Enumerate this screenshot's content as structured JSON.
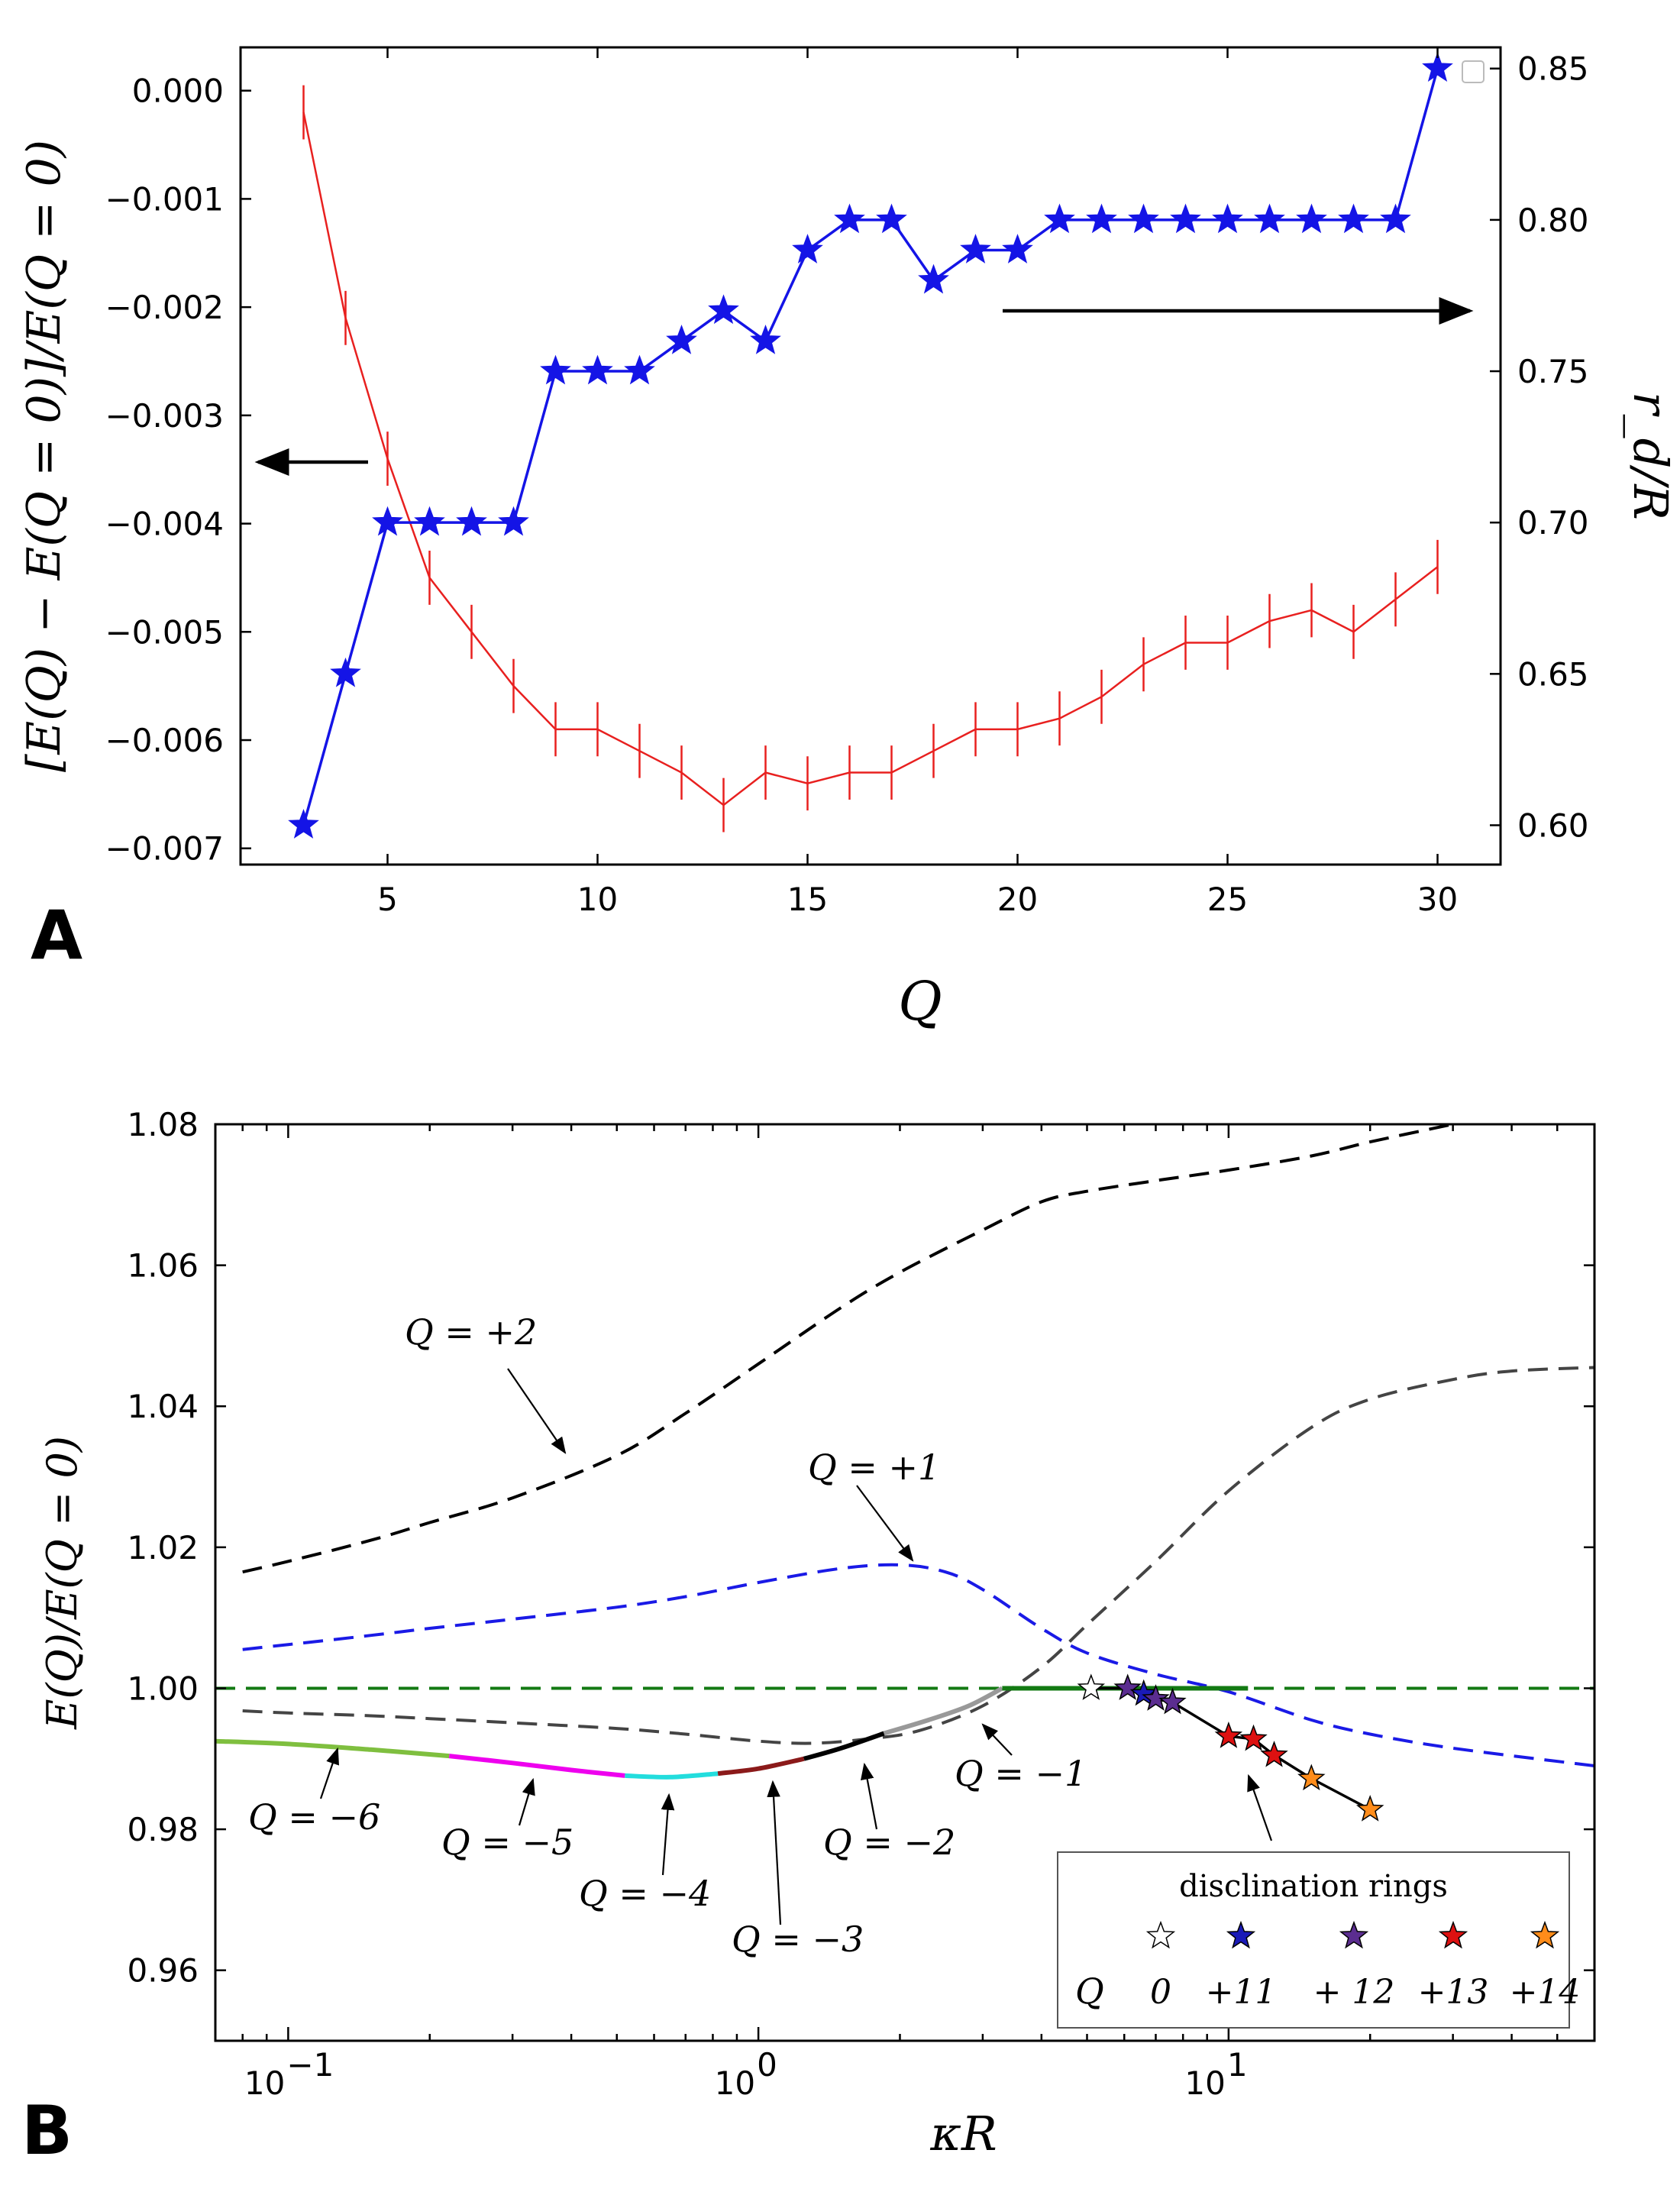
{
  "chart_data": [
    {
      "panel_label": "A",
      "type": "line",
      "xlabel": "Q",
      "ylabel_left": "[E(Q) − E(Q = 0)]/E(Q = 0)",
      "ylabel_right": "r_d/R",
      "xlim": [
        1.5,
        31.5
      ],
      "ylim_left": [
        -0.00715,
        0.0004
      ],
      "ylim_right": [
        0.587,
        0.857
      ],
      "xticks": [
        5,
        10,
        15,
        20,
        25,
        30
      ],
      "yticks_left": [
        0.0,
        -0.001,
        -0.002,
        -0.003,
        -0.004,
        -0.005,
        -0.006,
        -0.007
      ],
      "ytick_labels_left": [
        "0.000",
        "−0.001",
        "−0.002",
        "−0.003",
        "−0.004",
        "−0.005",
        "−0.006",
        "−0.007"
      ],
      "yticks_right": [
        0.6,
        0.65,
        0.7,
        0.75,
        0.8,
        0.85
      ],
      "ytick_labels_right": [
        "0.60",
        "0.65",
        "0.70",
        "0.75",
        "0.80",
        "0.85"
      ],
      "series": [
        {
          "name": "relative energy",
          "axis": "left",
          "color": "#e8201f",
          "style": "line-with-errorbars",
          "x": [
            3,
            4,
            5,
            6,
            7,
            8,
            9,
            10,
            11,
            12,
            13,
            14,
            15,
            16,
            17,
            18,
            19,
            20,
            21,
            22,
            23,
            24,
            25,
            26,
            27,
            28,
            29,
            30
          ],
          "values": [
            -0.0002,
            -0.0021,
            -0.0034,
            -0.0045,
            -0.005,
            -0.0055,
            -0.0059,
            -0.0059,
            -0.0061,
            -0.0063,
            -0.0066,
            -0.0063,
            -0.0064,
            -0.0063,
            -0.0063,
            -0.0061,
            -0.0059,
            -0.0059,
            -0.0058,
            -0.0056,
            -0.0053,
            -0.0051,
            -0.0051,
            -0.0049,
            -0.0048,
            -0.005,
            -0.0047,
            -0.0044
          ],
          "error": 0.00025
        },
        {
          "name": "r_d/R",
          "axis": "right",
          "color": "#1414e6",
          "style": "line-with-star-markers",
          "x": [
            3,
            4,
            5,
            6,
            7,
            8,
            9,
            10,
            11,
            12,
            13,
            14,
            15,
            16,
            17,
            18,
            19,
            20,
            21,
            22,
            23,
            24,
            25,
            26,
            27,
            28,
            29,
            30
          ],
          "values": [
            0.6,
            0.65,
            0.7,
            0.7,
            0.7,
            0.7,
            0.75,
            0.75,
            0.75,
            0.76,
            0.77,
            0.76,
            0.79,
            0.8,
            0.8,
            0.78,
            0.79,
            0.79,
            0.8,
            0.8,
            0.8,
            0.8,
            0.8,
            0.8,
            0.8,
            0.8,
            0.8,
            0.85
          ]
        }
      ],
      "annotations": [
        {
          "text": "",
          "arrow": "left",
          "points_to": "left axis"
        },
        {
          "text": "",
          "arrow": "right",
          "points_to": "right axis"
        }
      ]
    },
    {
      "panel_label": "B",
      "type": "line",
      "xscale": "log",
      "xlabel": "κR",
      "ylabel": "E(Q)/E(Q = 0)",
      "xlim": [
        0.07,
        60
      ],
      "ylim": [
        0.95,
        1.08
      ],
      "xticks": [
        0.1,
        1,
        10
      ],
      "xtick_labels": [
        {
          "base": "10",
          "exp": "−1"
        },
        {
          "base": "10",
          "exp": "0"
        },
        {
          "base": "10",
          "exp": "1"
        }
      ],
      "yticks": [
        0.96,
        0.98,
        1.0,
        1.02,
        1.04,
        1.06,
        1.08
      ],
      "ytick_labels": [
        "0.96",
        "0.98",
        "1.00",
        "1.02",
        "1.04",
        "1.06",
        "1.08"
      ],
      "series": [
        {
          "name": "Q = +2",
          "style": "dashed",
          "color": "#000000",
          "x": [
            0.08,
            0.1,
            0.15,
            0.2,
            0.3,
            0.5,
            0.7,
            1,
            1.5,
            2,
            3,
            4,
            5,
            7,
            10,
            15,
            20,
            30
          ],
          "values": [
            1.0165,
            1.018,
            1.021,
            1.0235,
            1.027,
            1.033,
            1.039,
            1.046,
            1.054,
            1.059,
            1.065,
            1.069,
            1.0705,
            1.072,
            1.0735,
            1.0755,
            1.0775,
            1.08
          ]
        },
        {
          "name": "Q = +1",
          "style": "dashed",
          "color": "#1a1ae6",
          "x": [
            0.08,
            0.1,
            0.15,
            0.2,
            0.3,
            0.5,
            0.7,
            1,
            1.5,
            2,
            2.5,
            3,
            4,
            5,
            7,
            10,
            15,
            20,
            30,
            60
          ],
          "values": [
            1.0055,
            1.0062,
            1.0075,
            1.0085,
            1.0098,
            1.0115,
            1.013,
            1.015,
            1.017,
            1.0175,
            1.0165,
            1.014,
            1.0085,
            1.005,
            1.002,
            0.9995,
            0.9955,
            0.9935,
            0.9915,
            0.989
          ]
        },
        {
          "name": "Q = 0",
          "style": "dashed",
          "color": "#137a13",
          "x": [
            0.07,
            60
          ],
          "values": [
            1.0,
            1.0
          ]
        },
        {
          "name": "Q = −1 (dashed)",
          "style": "dashed",
          "color": "#444444",
          "x": [
            0.08,
            0.1,
            0.15,
            0.2,
            0.3,
            0.5,
            0.7,
            1,
            1.3,
            1.7,
            2.2,
            3,
            4,
            5,
            7,
            10,
            15,
            20,
            30,
            40,
            60
          ],
          "values": [
            0.9968,
            0.9965,
            0.9961,
            0.9957,
            0.9951,
            0.9943,
            0.9935,
            0.9925,
            0.9922,
            0.9928,
            0.994,
            0.9975,
            1.003,
            1.009,
            1.018,
            1.028,
            1.037,
            1.041,
            1.0438,
            1.045,
            1.0455
          ]
        },
        {
          "name": "Q = −6",
          "style": "solid",
          "color": "#7fbf3f",
          "x": [
            0.07,
            0.1,
            0.15,
            0.22
          ],
          "values": [
            0.9925,
            0.9921,
            0.9913,
            0.9904
          ]
        },
        {
          "name": "Q = −5",
          "style": "solid",
          "color": "#ee00ee",
          "x": [
            0.22,
            0.3,
            0.4,
            0.52
          ],
          "values": [
            0.9904,
            0.9894,
            0.9884,
            0.9876
          ]
        },
        {
          "name": "Q = −4",
          "style": "solid",
          "color": "#22dddd",
          "x": [
            0.52,
            0.65,
            0.82
          ],
          "values": [
            0.9876,
            0.9874,
            0.9879
          ]
        },
        {
          "name": "Q = −3",
          "style": "solid",
          "color": "#8b1a1a",
          "x": [
            0.82,
            1.0,
            1.25
          ],
          "values": [
            0.9879,
            0.9886,
            0.99
          ]
        },
        {
          "name": "Q = −2",
          "style": "solid",
          "color": "#000000",
          "x": [
            1.25,
            1.5,
            1.85
          ],
          "values": [
            0.99,
            0.9915,
            0.9936
          ]
        },
        {
          "name": "Q = −1",
          "style": "solid",
          "color": "#999999",
          "x": [
            1.85,
            2.3,
            2.8,
            3.3
          ],
          "values": [
            0.9936,
            0.9955,
            0.9975,
            1.0
          ]
        },
        {
          "name": "Q = 0 (solid)",
          "style": "solid",
          "color": "#137a13",
          "x": [
            3.3,
            11
          ],
          "values": [
            1.0,
            1.0
          ]
        },
        {
          "name": "disclination rings",
          "style": "solid-with-stars",
          "color": "#000000",
          "x": [
            5.1,
            6.1,
            6.6,
            7.0,
            7.6,
            10.0,
            11.3,
            12.5,
            15.0,
            20.0
          ],
          "values": [
            1.0,
            1.0,
            0.9992,
            0.9985,
            0.998,
            0.9932,
            0.9928,
            0.9905,
            0.9872,
            0.9828
          ],
          "marker_colors": [
            "#ffffff",
            "#5b2d90",
            "#1a1ab8",
            "#5b2d90",
            "#5b2d90",
            "#dd1111",
            "#dd1111",
            "#dd1111",
            "#ff8c1a",
            "#ff8c1a"
          ]
        }
      ],
      "annotations": [
        {
          "text": "Q = +2",
          "points_to": "Q = +2 curve"
        },
        {
          "text": "Q = +1",
          "points_to": "Q = +1 curve"
        },
        {
          "text": "Q = −6"
        },
        {
          "text": "Q = −5"
        },
        {
          "text": "Q = −4"
        },
        {
          "text": "Q = −3"
        },
        {
          "text": "Q = −2"
        },
        {
          "text": "Q = −1"
        }
      ],
      "legend": {
        "title": "disclination rings",
        "placement": "lower-right",
        "row_label": "Q",
        "entries": [
          {
            "label": "0",
            "color": "#ffffff"
          },
          {
            "label": "+11",
            "color": "#1a1ab8"
          },
          {
            "label": "+ 12",
            "color": "#5b2d90"
          },
          {
            "label": "+13",
            "color": "#dd1111"
          },
          {
            "label": "+14",
            "color": "#ff8c1a"
          }
        ]
      }
    }
  ]
}
